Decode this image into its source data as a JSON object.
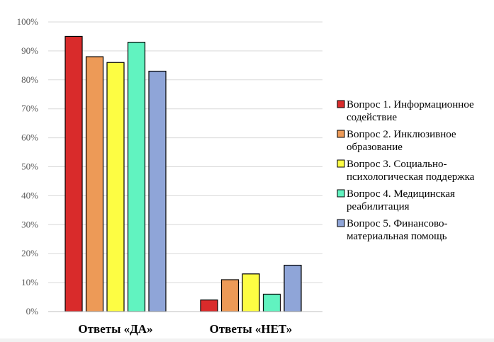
{
  "chart_data": {
    "type": "bar",
    "categories": [
      "Ответы «ДА»",
      "Ответы «НЕТ»"
    ],
    "series": [
      {
        "name": "Вопрос 1. Информационное содействие",
        "values": [
          95,
          4
        ],
        "color": "#d92b2b"
      },
      {
        "name": "Вопрос 2. Инклюзивное образование",
        "values": [
          88,
          11
        ],
        "color": "#ed9a57"
      },
      {
        "name": "Вопрос 3. Социально-психологическая поддержка",
        "values": [
          86,
          13
        ],
        "color": "#fdfd43"
      },
      {
        "name": "Вопрос 4. Медицинская реабилитация",
        "values": [
          93,
          6
        ],
        "color": "#61f3c0"
      },
      {
        "name": "Вопрос 5. Финансово-материальная помощь",
        "values": [
          83,
          16
        ],
        "color": "#8fa5d8"
      }
    ],
    "legend_lines": [
      [
        "Вопрос 1. Информационное",
        "содействие"
      ],
      [
        "Вопрос 2. Инклюзивное",
        "образование"
      ],
      [
        "Вопрос 3. Социально-",
        "психологическая поддержка"
      ],
      [
        "Вопрос 4. Медицинская",
        "реабилитация"
      ],
      [
        "Вопрос 5. Финансово-",
        "материальная помощь"
      ]
    ],
    "y_ticks": [
      "0%",
      "10%",
      "20%",
      "30%",
      "40%",
      "50%",
      "60%",
      "70%",
      "80%",
      "90%",
      "100%"
    ],
    "ylim": [
      0,
      100
    ],
    "y_unit": "%",
    "grid": true,
    "legend_position": "right",
    "title": "",
    "xlabel": "",
    "ylabel": ""
  }
}
